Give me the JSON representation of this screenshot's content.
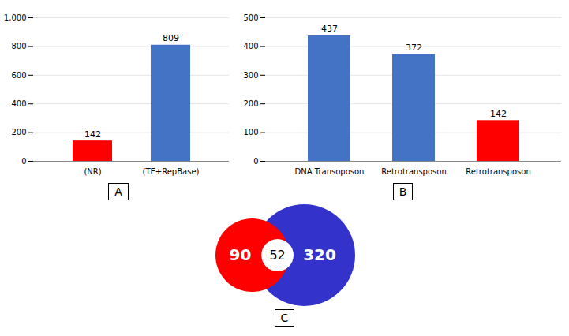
{
  "chart_data": [
    {
      "type": "bar",
      "title": "A",
      "categories": [
        "(NR)",
        "(TE+RepBase)"
      ],
      "values": [
        142,
        809
      ],
      "colors": [
        "#ff0000",
        "#4472c4"
      ],
      "ylim": [
        0,
        1000
      ],
      "yticks": [
        0,
        200,
        400,
        600,
        800,
        1000
      ],
      "grid": true,
      "data_labels": true
    },
    {
      "type": "bar",
      "title": "B",
      "categories": [
        "DNA Transoposon",
        "Retrotransposon",
        "Retrotransposon"
      ],
      "values": [
        437,
        372,
        142
      ],
      "colors": [
        "#4472c4",
        "#4472c4",
        "#ff0000"
      ],
      "ylim": [
        0,
        500
      ],
      "yticks": [
        0,
        100,
        200,
        300,
        400,
        500
      ],
      "grid": true,
      "data_labels": true
    },
    {
      "type": "venn",
      "title": "C",
      "values": [
        90,
        52,
        320
      ],
      "colors": [
        "#ff0000",
        "#3333cc"
      ],
      "data_labels": true
    }
  ]
}
